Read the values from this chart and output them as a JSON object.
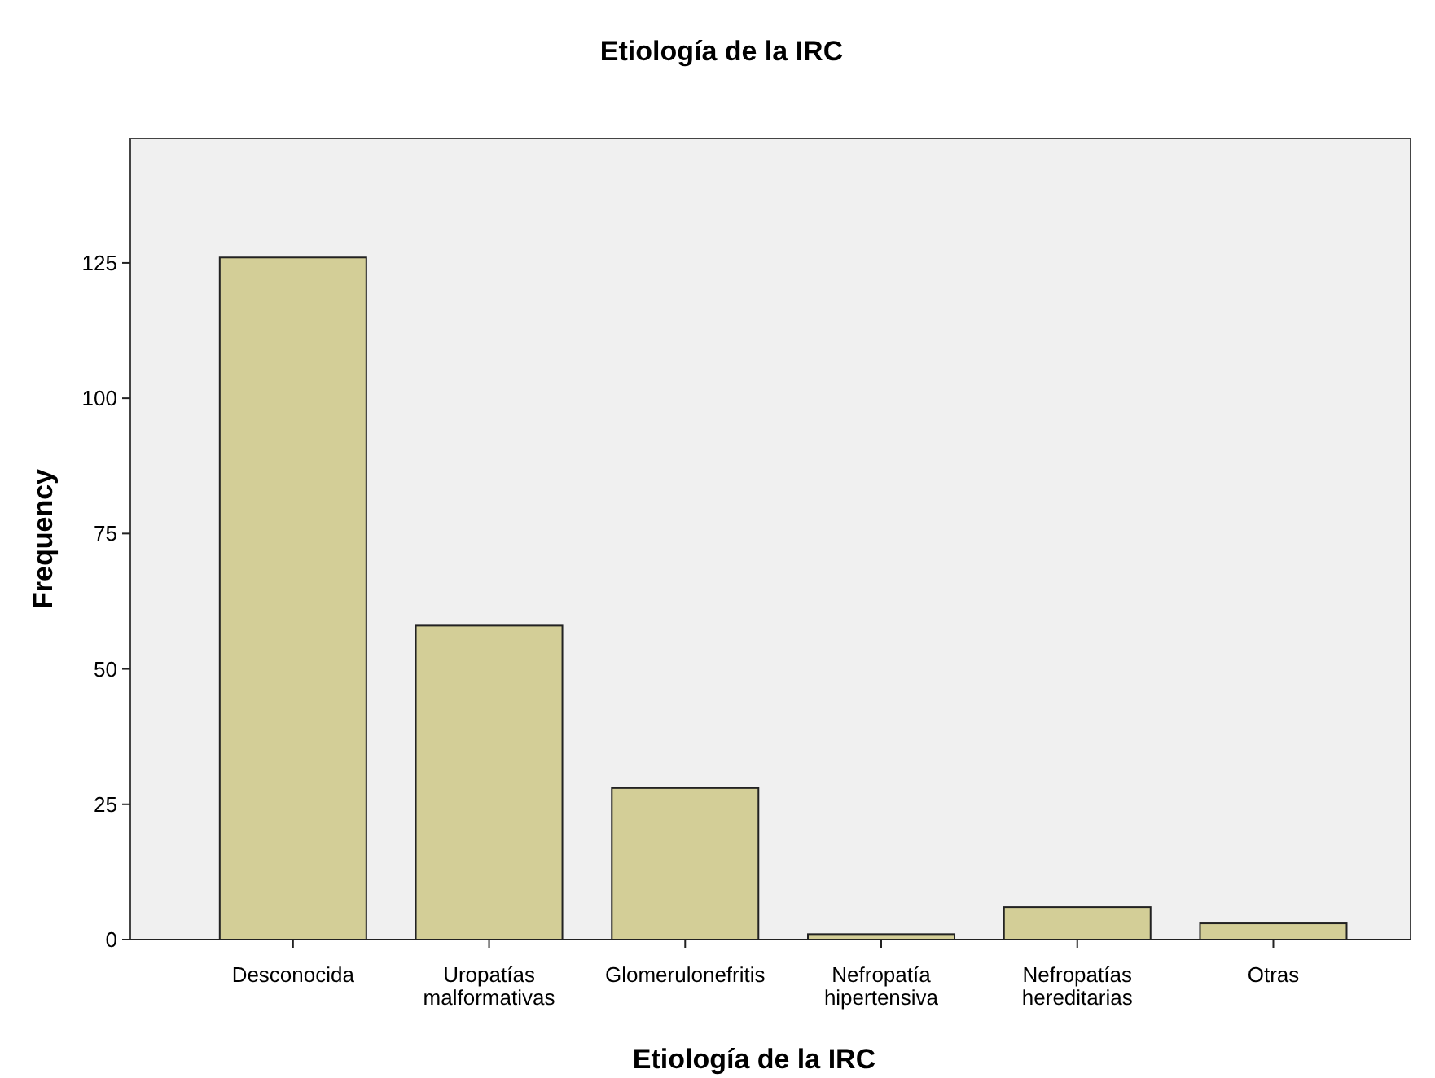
{
  "chart_data": {
    "type": "bar",
    "title": "Etiología de la IRC",
    "xlabel": "Etiología de la IRC",
    "ylabel": "Frequency",
    "categories": [
      "Desconocida",
      "Uropatías malformativas",
      "Glomerulonefritis",
      "Nefropatía hipertensiva",
      "Nefropatías hereditarias",
      "Otras"
    ],
    "values": [
      126,
      58,
      28,
      1,
      6,
      3
    ],
    "color": "#d3ce97",
    "ylim": [
      0,
      148
    ],
    "yticks": [
      0,
      25,
      50,
      75,
      100,
      125
    ],
    "grid": false
  }
}
